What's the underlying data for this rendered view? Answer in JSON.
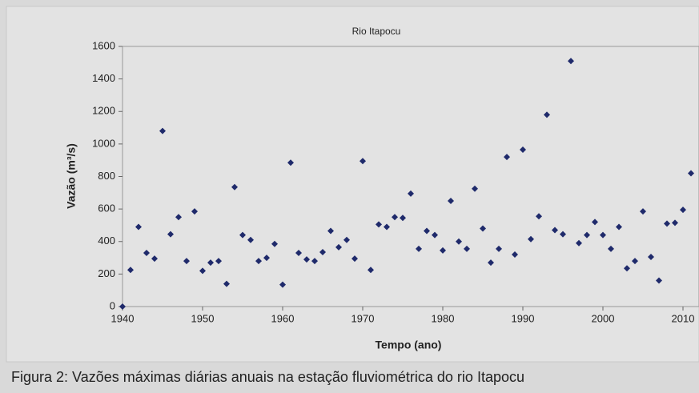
{
  "chart_data": {
    "type": "scatter",
    "title": "Rio Itapocu",
    "xlabel": "Tempo (ano)",
    "ylabel": "Vazão (m³/s)",
    "series": [
      {
        "color": "#1f2a6b",
        "x": [
          1940,
          1941,
          1942,
          1943,
          1944,
          1945,
          1946,
          1947,
          1948,
          1949,
          1950,
          1951,
          1952,
          1953,
          1954,
          1955,
          1956,
          1957,
          1958,
          1959,
          1960,
          1961,
          1962,
          1963,
          1964,
          1965,
          1966,
          1967,
          1968,
          1969,
          1970,
          1971,
          1972,
          1973,
          1974,
          1975,
          1976,
          1977,
          1978,
          1979,
          1980,
          1981,
          1982,
          1983,
          1984,
          1985,
          1986,
          1987,
          1988,
          1989,
          1990,
          1991,
          1992,
          1993,
          1994,
          1995,
          1996,
          1997,
          1998,
          1999,
          2000,
          2001,
          2002,
          2003,
          2004,
          2005,
          2006,
          2007,
          2008,
          2009,
          2010,
          2011
        ],
        "values": [
          0,
          225,
          490,
          330,
          295,
          1080,
          445,
          550,
          280,
          585,
          220,
          270,
          280,
          140,
          735,
          440,
          410,
          280,
          300,
          385,
          135,
          885,
          330,
          290,
          280,
          335,
          465,
          365,
          410,
          295,
          895,
          225,
          505,
          490,
          550,
          545,
          695,
          355,
          465,
          440,
          345,
          650,
          400,
          355,
          725,
          480,
          270,
          355,
          920,
          320,
          965,
          415,
          555,
          1180,
          470,
          445,
          1510,
          390,
          440,
          520,
          440,
          355,
          490,
          235,
          280,
          585,
          305,
          160,
          510,
          515,
          595,
          820
        ]
      }
    ],
    "xlim": [
      1940,
      2012
    ],
    "xticks": [
      1940,
      1950,
      1960,
      1970,
      1980,
      1990,
      2000,
      2010
    ],
    "ylim": [
      0,
      1600
    ],
    "yticks": [
      0,
      200,
      400,
      600,
      800,
      1000,
      1200,
      1400,
      1600
    ],
    "grid": false
  },
  "caption": "Figura 2: Vazões máximas diárias anuais na estação fluviométrica do rio Itapocu"
}
